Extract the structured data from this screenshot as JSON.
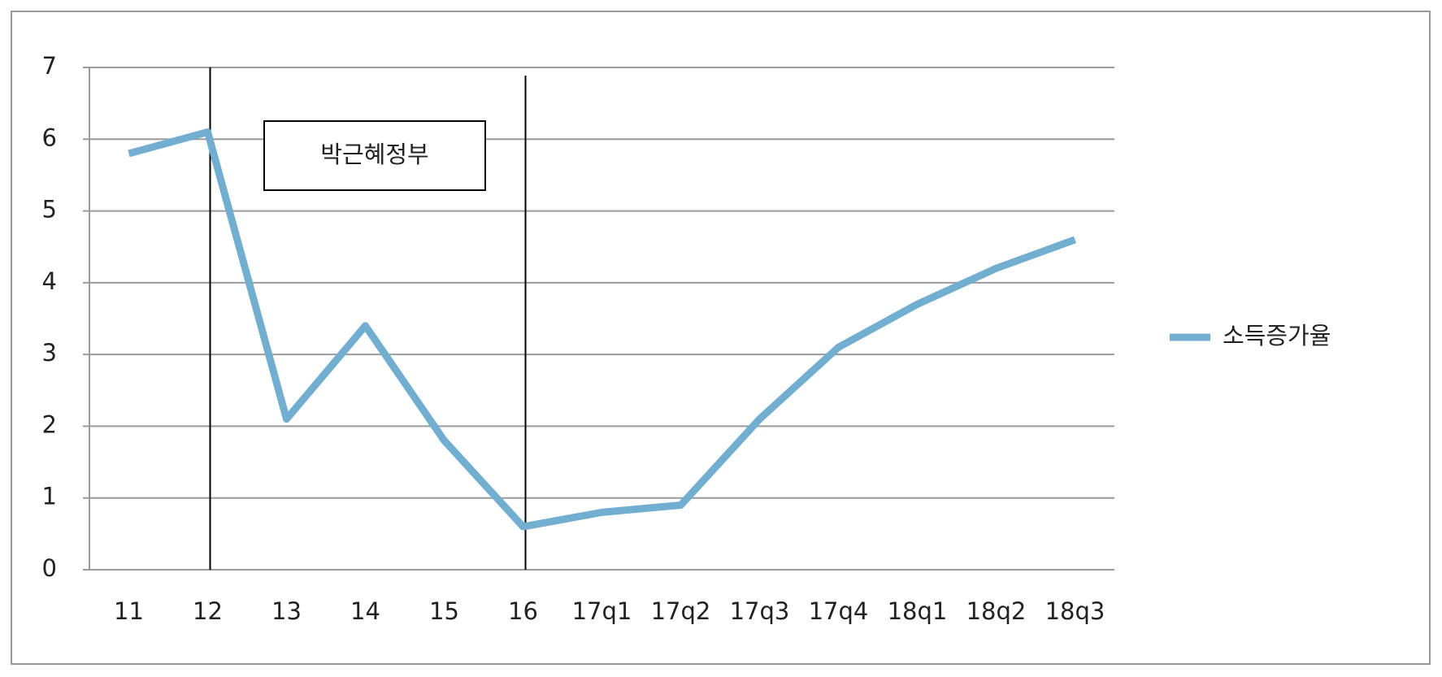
{
  "chart_data": {
    "type": "line",
    "annotation": "박근혜정부",
    "categories": [
      "11",
      "12",
      "13",
      "14",
      "15",
      "16",
      "17q1",
      "17q2",
      "17q3",
      "17q4",
      "18q1",
      "18q2",
      "18q3"
    ],
    "series": [
      {
        "name": "소득증가율",
        "color": "#71aed0",
        "values": [
          5.8,
          6.1,
          2.1,
          3.4,
          1.8,
          0.6,
          0.8,
          0.9,
          2.1,
          3.1,
          3.7,
          4.2,
          4.6
        ]
      }
    ],
    "ylim": [
      0,
      7
    ],
    "yticks": [
      0,
      1,
      2,
      3,
      4,
      5,
      6,
      7
    ],
    "grid": true,
    "legend": "right"
  }
}
